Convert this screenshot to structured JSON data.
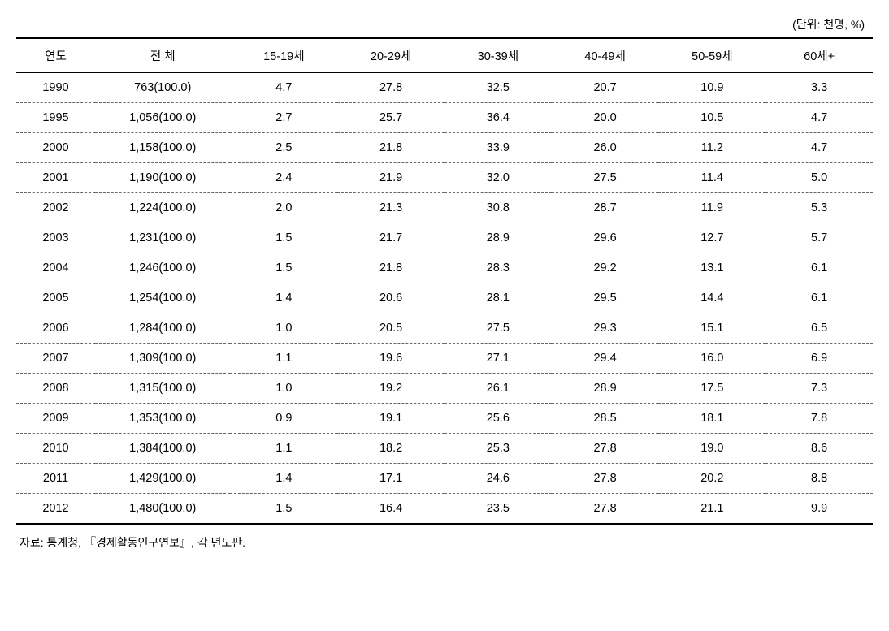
{
  "unit_label": "(단위: 천명, %)",
  "headers": {
    "year": "연도",
    "total": "전   체",
    "age1": "15-19세",
    "age2": "20-29세",
    "age3": "30-39세",
    "age4": "40-49세",
    "age5": "50-59세",
    "age6": "60세+"
  },
  "rows": [
    {
      "year": "1990",
      "total": "763(100.0)",
      "a1": "4.7",
      "a2": "27.8",
      "a3": "32.5",
      "a4": "20.7",
      "a5": "10.9",
      "a6": "3.3"
    },
    {
      "year": "1995",
      "total": "1,056(100.0)",
      "a1": "2.7",
      "a2": "25.7",
      "a3": "36.4",
      "a4": "20.0",
      "a5": "10.5",
      "a6": "4.7"
    },
    {
      "year": "2000",
      "total": "1,158(100.0)",
      "a1": "2.5",
      "a2": "21.8",
      "a3": "33.9",
      "a4": "26.0",
      "a5": "11.2",
      "a6": "4.7"
    },
    {
      "year": "2001",
      "total": "1,190(100.0)",
      "a1": "2.4",
      "a2": "21.9",
      "a3": "32.0",
      "a4": "27.5",
      "a5": "11.4",
      "a6": "5.0"
    },
    {
      "year": "2002",
      "total": "1,224(100.0)",
      "a1": "2.0",
      "a2": "21.3",
      "a3": "30.8",
      "a4": "28.7",
      "a5": "11.9",
      "a6": "5.3"
    },
    {
      "year": "2003",
      "total": "1,231(100.0)",
      "a1": "1.5",
      "a2": "21.7",
      "a3": "28.9",
      "a4": "29.6",
      "a5": "12.7",
      "a6": "5.7"
    },
    {
      "year": "2004",
      "total": "1,246(100.0)",
      "a1": "1.5",
      "a2": "21.8",
      "a3": "28.3",
      "a4": "29.2",
      "a5": "13.1",
      "a6": "6.1"
    },
    {
      "year": "2005",
      "total": "1,254(100.0)",
      "a1": "1.4",
      "a2": "20.6",
      "a3": "28.1",
      "a4": "29.5",
      "a5": "14.4",
      "a6": "6.1"
    },
    {
      "year": "2006",
      "total": "1,284(100.0)",
      "a1": "1.0",
      "a2": "20.5",
      "a3": "27.5",
      "a4": "29.3",
      "a5": "15.1",
      "a6": "6.5"
    },
    {
      "year": "2007",
      "total": "1,309(100.0)",
      "a1": "1.1",
      "a2": "19.6",
      "a3": "27.1",
      "a4": "29.4",
      "a5": "16.0",
      "a6": "6.9"
    },
    {
      "year": "2008",
      "total": "1,315(100.0)",
      "a1": "1.0",
      "a2": "19.2",
      "a3": "26.1",
      "a4": "28.9",
      "a5": "17.5",
      "a6": "7.3"
    },
    {
      "year": "2009",
      "total": "1,353(100.0)",
      "a1": "0.9",
      "a2": "19.1",
      "a3": "25.6",
      "a4": "28.5",
      "a5": "18.1",
      "a6": "7.8"
    },
    {
      "year": "2010",
      "total": "1,384(100.0)",
      "a1": "1.1",
      "a2": "18.2",
      "a3": "25.3",
      "a4": "27.8",
      "a5": "19.0",
      "a6": "8.6"
    },
    {
      "year": "2011",
      "total": "1,429(100.0)",
      "a1": "1.4",
      "a2": "17.1",
      "a3": "24.6",
      "a4": "27.8",
      "a5": "20.2",
      "a6": "8.8"
    },
    {
      "year": "2012",
      "total": "1,480(100.0)",
      "a1": "1.5",
      "a2": "16.4",
      "a3": "23.5",
      "a4": "27.8",
      "a5": "21.1",
      "a6": "9.9"
    }
  ],
  "source_note": "자료: 통계청, 『경제활동인구연보』, 각 년도판.",
  "styling": {
    "background_color": "#ffffff",
    "text_color": "#000000",
    "border_top_width": 2,
    "border_top_color": "#000000",
    "row_border_style": "dashed",
    "row_border_color": "#666666",
    "header_border_bottom": "1px solid #000000",
    "last_row_border": "2px solid #000000",
    "font_size": 14.5,
    "font_family": "Malgun Gothic",
    "cell_padding": "10px 4px",
    "text_align": "center",
    "column_widths": {
      "year": "9%",
      "total": "16%",
      "age": "12.5%"
    }
  }
}
